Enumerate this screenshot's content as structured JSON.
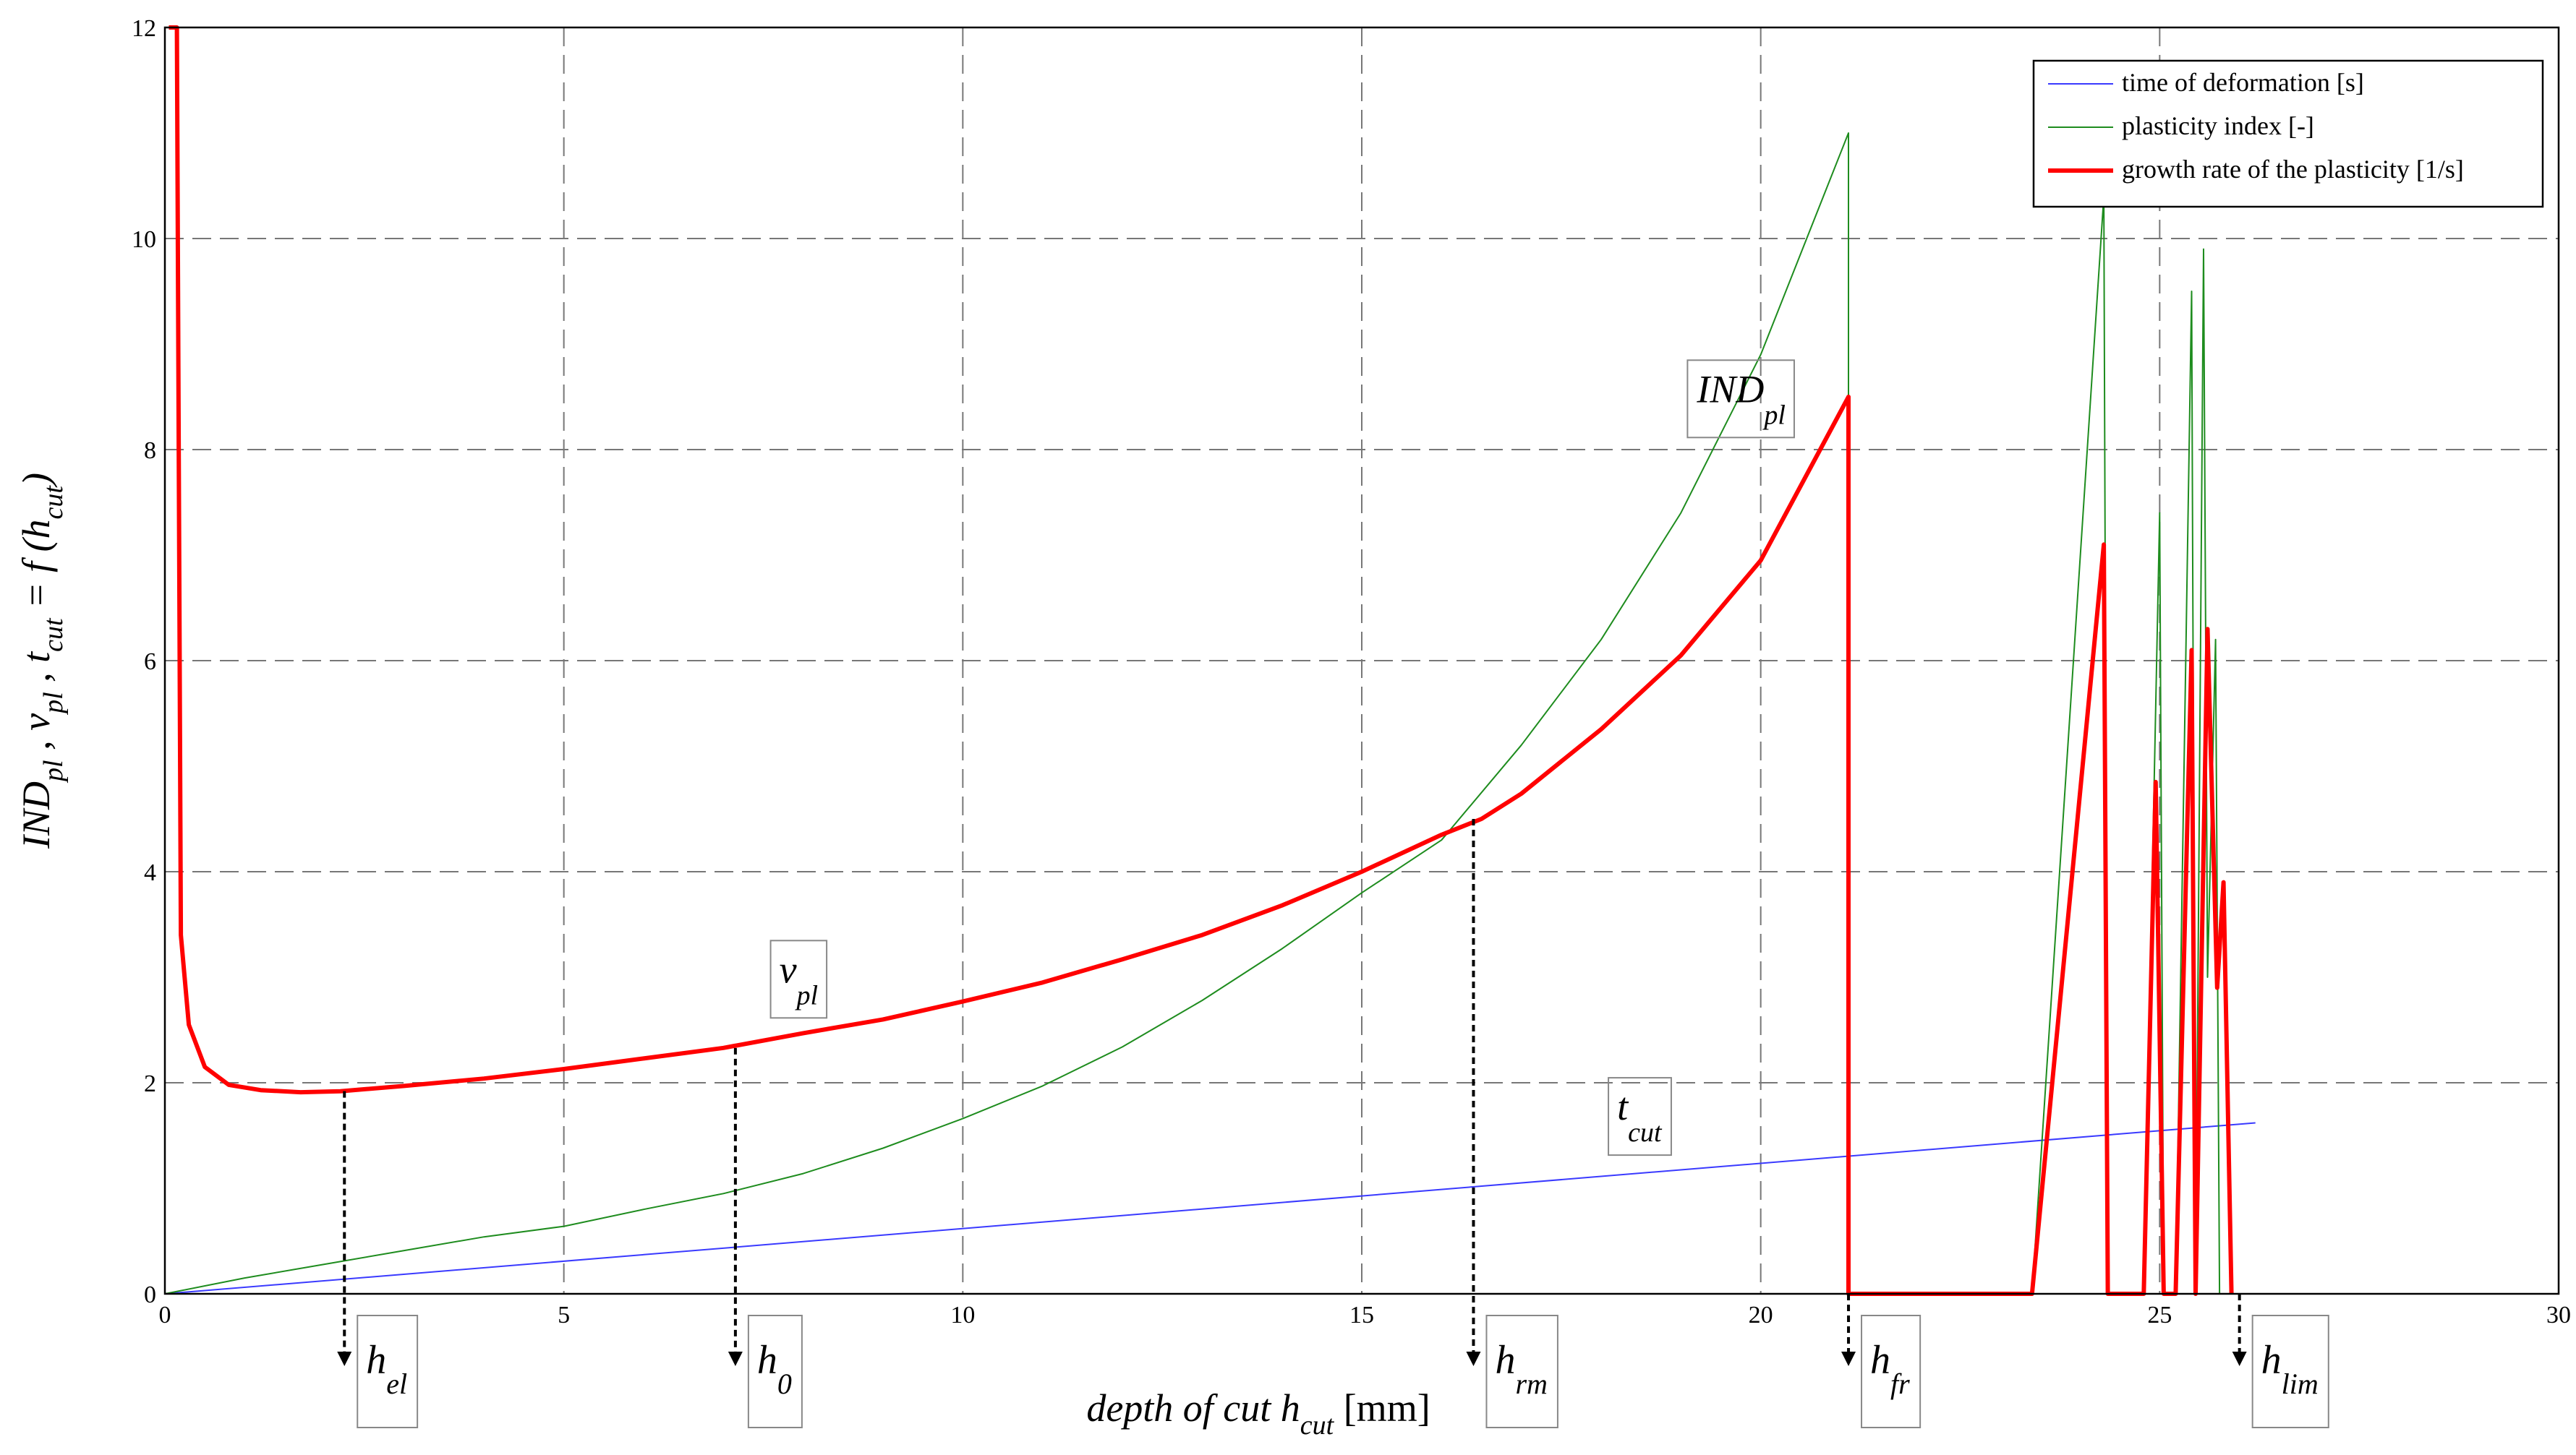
{
  "chart_data": {
    "type": "line",
    "xlabel": {
      "main": "depth of cut h",
      "sub": "cut",
      "unit": " [mm]"
    },
    "ylabel": {
      "p1": "IND",
      "s1": "pl",
      "p2": " , v",
      "s2": "pl",
      "p3": " , t",
      "s3": "cut",
      "p4": " = f (h",
      "s4": "cut",
      "p5": ")"
    },
    "xlim": [
      0,
      30
    ],
    "ylim": [
      0,
      12
    ],
    "xticks": [
      "0",
      "5",
      "10",
      "15",
      "20",
      "25",
      "30"
    ],
    "yticks": [
      "0",
      "2",
      "4",
      "6",
      "8",
      "10",
      "12"
    ],
    "grid": true,
    "legend_position": "top-right",
    "series": [
      {
        "name": "time of deformation [s]",
        "color": "#3a3aff",
        "points": [
          [
            0,
            0
          ],
          [
            26.2,
            1.62
          ]
        ]
      },
      {
        "name": "plasticity index [-]",
        "color": "#1e8c1e",
        "points": [
          [
            0,
            0
          ],
          [
            1,
            0.15
          ],
          [
            2,
            0.28
          ],
          [
            3,
            0.41
          ],
          [
            4,
            0.54
          ],
          [
            5,
            0.64
          ],
          [
            6,
            0.8
          ],
          [
            7,
            0.95
          ],
          [
            8,
            1.14
          ],
          [
            9,
            1.38
          ],
          [
            10,
            1.66
          ],
          [
            11,
            1.97
          ],
          [
            12,
            2.34
          ],
          [
            13,
            2.78
          ],
          [
            14,
            3.27
          ],
          [
            15,
            3.8
          ],
          [
            16,
            4.3
          ],
          [
            17,
            5.2
          ],
          [
            18,
            6.2
          ],
          [
            19,
            7.4
          ],
          [
            20,
            8.9
          ],
          [
            21.1,
            11.0
          ],
          [
            21.1,
            0
          ],
          [
            23.4,
            0
          ],
          [
            24.3,
            10.4
          ],
          [
            24.35,
            0
          ],
          [
            24.8,
            0
          ],
          [
            25.0,
            7.4
          ],
          [
            25.05,
            0
          ],
          [
            25.2,
            0
          ],
          [
            25.4,
            9.5
          ],
          [
            25.45,
            0
          ],
          [
            25.55,
            9.9
          ],
          [
            25.6,
            3.0
          ],
          [
            25.7,
            6.2
          ],
          [
            25.75,
            0
          ]
        ]
      },
      {
        "name": "growth rate of the plasticity [1/s]",
        "color": "#ff0000",
        "points": [
          [
            0.05,
            12
          ],
          [
            0.15,
            12
          ],
          [
            0.2,
            3.4
          ],
          [
            0.3,
            2.55
          ],
          [
            0.5,
            2.15
          ],
          [
            0.8,
            1.98
          ],
          [
            1.2,
            1.93
          ],
          [
            1.7,
            1.91
          ],
          [
            2.2,
            1.92
          ],
          [
            3,
            1.97
          ],
          [
            4,
            2.04
          ],
          [
            5,
            2.13
          ],
          [
            6,
            2.23
          ],
          [
            7,
            2.33
          ],
          [
            8,
            2.47
          ],
          [
            9,
            2.6
          ],
          [
            10,
            2.77
          ],
          [
            11,
            2.95
          ],
          [
            12,
            3.17
          ],
          [
            13,
            3.4
          ],
          [
            14,
            3.68
          ],
          [
            15,
            4.0
          ],
          [
            16,
            4.35
          ],
          [
            16.5,
            4.5
          ],
          [
            17,
            4.74
          ],
          [
            18,
            5.35
          ],
          [
            19,
            6.05
          ],
          [
            20,
            6.95
          ],
          [
            21.1,
            8.5
          ],
          [
            21.1,
            0
          ],
          [
            23.4,
            0
          ],
          [
            24.3,
            7.1
          ],
          [
            24.35,
            0
          ],
          [
            24.8,
            0
          ],
          [
            24.95,
            4.85
          ],
          [
            25.05,
            0
          ],
          [
            25.2,
            0
          ],
          [
            25.4,
            6.1
          ],
          [
            25.45,
            0
          ],
          [
            25.6,
            6.3
          ],
          [
            25.72,
            2.9
          ],
          [
            25.8,
            3.9
          ],
          [
            25.9,
            0
          ]
        ]
      }
    ],
    "annotations": {
      "series_labels": [
        {
          "name": "IND",
          "sub": "pl",
          "x": 19.2,
          "y": 8.45
        },
        {
          "name": "v",
          "sub": "pl",
          "x": 7.7,
          "y": 2.95
        },
        {
          "name": "t",
          "sub": "cut",
          "x": 18.2,
          "y": 1.65
        }
      ],
      "markers": [
        {
          "name": "h",
          "sub": "el",
          "x": 2.25,
          "y_from": 1.92
        },
        {
          "name": "h",
          "sub": "0",
          "x": 7.15,
          "y_from": 2.33
        },
        {
          "name": "h",
          "sub": "rm",
          "x": 16.4,
          "y_from": 4.5
        },
        {
          "name": "h",
          "sub": "fr",
          "x": 21.1,
          "y_from": 0
        },
        {
          "name": "h",
          "sub": "lim",
          "x": 26.0,
          "y_from": 0
        }
      ]
    }
  }
}
